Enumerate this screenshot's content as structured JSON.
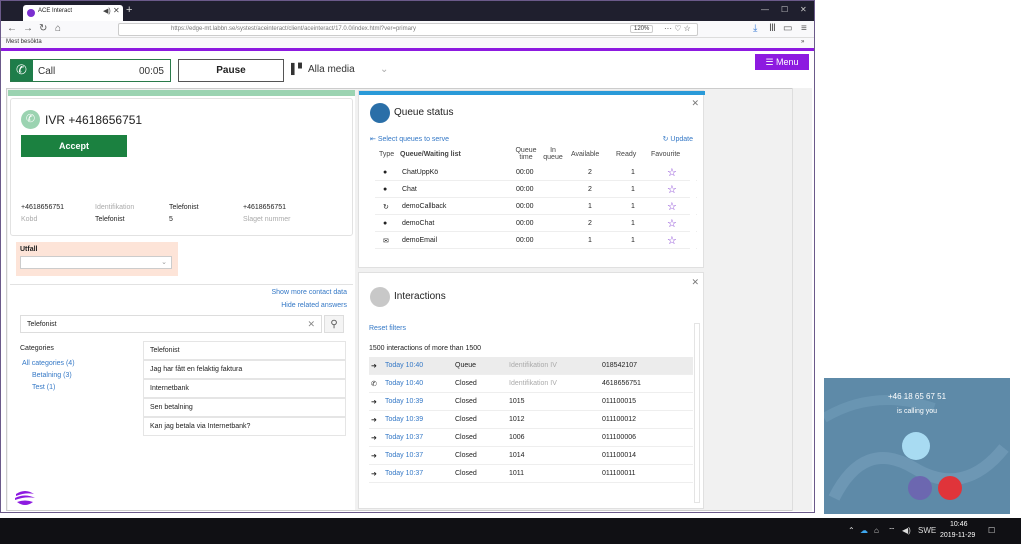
{
  "browser": {
    "tab_title": "ACE Interact",
    "url": "https://edge-mt.labbn.se/systest/aceinteract/client/aceinteract/17.0.0/index.html?ver=primary",
    "zoom": "120%",
    "bookmark": "Mest besökta"
  },
  "toolbar": {
    "call_label": "Call",
    "call_time": "00:05",
    "pause_label": "Pause",
    "media_label": "Alla media",
    "menu_label": "☰ Menu"
  },
  "contact": {
    "title": "IVR +4618656751",
    "accept_label": "Accept",
    "fields": [
      {
        "value": "+4618656751",
        "label": "Kobd"
      },
      {
        "value": "Identifikation",
        "label": ""
      },
      {
        "value": "Telefonist",
        "label": "Telefonist"
      },
      {
        "value": "",
        "label": "5"
      },
      {
        "value": "+4618656751",
        "label": "Slaget nummer"
      }
    ]
  },
  "utfall": {
    "label": "Utfall",
    "value": ""
  },
  "related": {
    "show_more": "Show more contact data",
    "hide_answers": "Hide related answers",
    "search_value": "Telefonist",
    "categories_header": "Categories",
    "categories": [
      "All categories (4)",
      "Betalning (3)",
      "Test (1)"
    ],
    "answers": [
      "Telefonist",
      "Jag har fått en felaktig faktura",
      "Internetbank",
      "Sen betalning",
      "Kan jag betala via Internetbank?"
    ]
  },
  "queue": {
    "title": "Queue status",
    "select_link": "Select queues to serve",
    "update_link": "Update",
    "headers": {
      "type": "Type",
      "name": "Queue/Waiting list",
      "time": "Queue time",
      "in_queue": "In queue",
      "available": "Available",
      "ready": "Ready",
      "favourite": "Favourite"
    },
    "rows": [
      {
        "icon": "chat-icon",
        "name": "ChatUppKö",
        "time": "00:00",
        "available": "2",
        "ready": "1"
      },
      {
        "icon": "chat-icon",
        "name": "Chat",
        "time": "00:00",
        "available": "2",
        "ready": "1"
      },
      {
        "icon": "callback-icon",
        "name": "demoCallback",
        "time": "00:00",
        "available": "1",
        "ready": "1"
      },
      {
        "icon": "chat-icon",
        "name": "demoChat",
        "time": "00:00",
        "available": "2",
        "ready": "1"
      },
      {
        "icon": "email-icon",
        "name": "demoEmail",
        "time": "00:00",
        "available": "1",
        "ready": "1"
      }
    ]
  },
  "interactions": {
    "title": "Interactions",
    "reset_filters": "Reset filters",
    "count_text": "1500 interactions of more than 1500",
    "rows": [
      {
        "icon": "arrow-icon",
        "time": "Today 10:40",
        "status": "Queue",
        "id": "Identifikation IV",
        "number": "018542107"
      },
      {
        "icon": "phone-icon",
        "time": "Today 10:40",
        "status": "Closed",
        "id": "Identifikation IV",
        "number": "4618656751"
      },
      {
        "icon": "arrow-icon",
        "time": "Today 10:39",
        "status": "Closed",
        "id": "1015",
        "number": "011100015"
      },
      {
        "icon": "arrow-icon",
        "time": "Today 10:39",
        "status": "Closed",
        "id": "1012",
        "number": "011100012"
      },
      {
        "icon": "arrow-icon",
        "time": "Today 10:37",
        "status": "Closed",
        "id": "1006",
        "number": "011100006"
      },
      {
        "icon": "arrow-icon",
        "time": "Today 10:37",
        "status": "Closed",
        "id": "1014",
        "number": "011100014"
      },
      {
        "icon": "arrow-icon",
        "time": "Today 10:37",
        "status": "Closed",
        "id": "1011",
        "number": "011100011"
      }
    ]
  },
  "popup": {
    "number": "+46 18 65 67 51",
    "subtitle": "is calling you"
  },
  "taskbar": {
    "lang": "SWE",
    "time": "10:46",
    "date": "2019-11-29"
  },
  "colors": {
    "purple": "#8d1ae0",
    "green": "#1b8140",
    "blue_link": "#3478c6",
    "queue_accent": "#2a9ad8"
  }
}
